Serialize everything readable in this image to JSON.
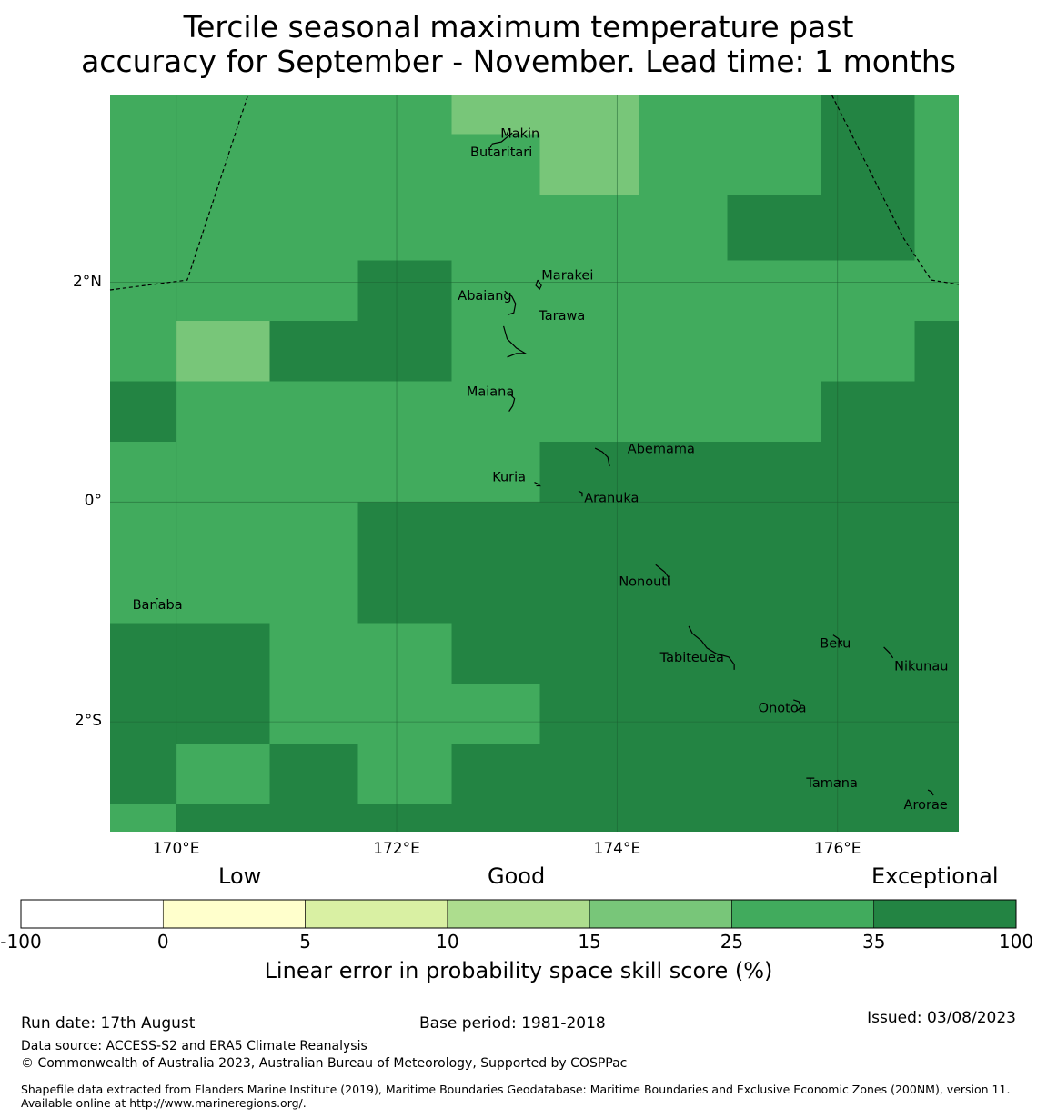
{
  "title_line1": "Tercile seasonal maximum temperature past",
  "title_line2": "accuracy for September - November. Lead time: 1 months",
  "map": {
    "lon_range": [
      169.4,
      177.1
    ],
    "lat_range": [
      -3.0,
      3.7
    ],
    "grid_lons": [
      170,
      172,
      174,
      176
    ],
    "grid_lats": [
      2,
      0,
      -2
    ],
    "x_tick_labels": [
      "170°E",
      "172°E",
      "174°E",
      "176°E"
    ],
    "y_tick_labels": [
      "2°N",
      "0°",
      "2°S"
    ],
    "cells": [
      {
        "x0": 169.4,
        "x1": 170.0,
        "y0": 3.7,
        "y1": 0.55,
        "cat": 35
      },
      {
        "x0": 170.0,
        "x1": 172.5,
        "y0": 3.7,
        "y1": 2.2,
        "cat": 35
      },
      {
        "x0": 172.5,
        "x1": 173.3,
        "y0": 3.7,
        "y1": 3.35,
        "cat": 25
      },
      {
        "x0": 172.5,
        "x1": 173.3,
        "y0": 3.35,
        "y1": 2.2,
        "cat": 35
      },
      {
        "x0": 173.3,
        "x1": 174.2,
        "y0": 3.7,
        "y1": 2.8,
        "cat": 25
      },
      {
        "x0": 173.3,
        "x1": 174.2,
        "y0": 2.8,
        "y1": 0.55,
        "cat": 35
      },
      {
        "x0": 174.2,
        "x1": 175.0,
        "y0": 3.7,
        "y1": 0.55,
        "cat": 35
      },
      {
        "x0": 175.0,
        "x1": 175.85,
        "y0": 3.7,
        "y1": 2.8,
        "cat": 35
      },
      {
        "x0": 175.0,
        "x1": 176.7,
        "y0": 2.8,
        "y1": 2.2,
        "cat": 100
      },
      {
        "x0": 175.85,
        "x1": 176.7,
        "y0": 3.7,
        "y1": 2.8,
        "cat": 100
      },
      {
        "x0": 176.7,
        "x1": 177.1,
        "y0": 3.7,
        "y1": 1.65,
        "cat": 35
      },
      {
        "x0": 175.0,
        "x1": 176.7,
        "y0": 2.2,
        "y1": 1.1,
        "cat": 35
      },
      {
        "x0": 176.7,
        "x1": 177.1,
        "y0": 1.65,
        "y1": -3.0,
        "cat": 100
      },
      {
        "x0": 170.0,
        "x1": 171.65,
        "y0": 2.2,
        "y1": 1.65,
        "cat": 35
      },
      {
        "x0": 171.65,
        "x1": 172.5,
        "y0": 2.2,
        "y1": 1.65,
        "cat": 100
      },
      {
        "x0": 170.0,
        "x1": 170.85,
        "y0": 1.65,
        "y1": 1.1,
        "cat": 25
      },
      {
        "x0": 170.85,
        "x1": 172.5,
        "y0": 1.65,
        "y1": 1.1,
        "cat": 100
      },
      {
        "x0": 172.5,
        "x1": 173.3,
        "y0": 2.2,
        "y1": 0.55,
        "cat": 35
      },
      {
        "x0": 170.0,
        "x1": 172.5,
        "y0": 1.1,
        "y1": 0.55,
        "cat": 35
      },
      {
        "x0": 169.4,
        "x1": 170.0,
        "y0": 1.1,
        "y1": 0.55,
        "cat": 100
      },
      {
        "x0": 175.85,
        "x1": 176.7,
        "y0": 1.1,
        "y1": 0.55,
        "cat": 100
      },
      {
        "x0": 169.4,
        "x1": 173.3,
        "y0": 0.55,
        "y1": 0.0,
        "cat": 35
      },
      {
        "x0": 173.3,
        "x1": 176.7,
        "y0": 0.55,
        "y1": 0.0,
        "cat": 100
      },
      {
        "x0": 169.4,
        "x1": 171.65,
        "y0": 0.0,
        "y1": -1.1,
        "cat": 35
      },
      {
        "x0": 171.65,
        "x1": 176.7,
        "y0": 0.0,
        "y1": -1.1,
        "cat": 100
      },
      {
        "x0": 169.4,
        "x1": 170.85,
        "y0": -1.1,
        "y1": -2.2,
        "cat": 100
      },
      {
        "x0": 170.85,
        "x1": 172.5,
        "y0": -1.1,
        "y1": -2.2,
        "cat": 35
      },
      {
        "x0": 172.5,
        "x1": 173.3,
        "y0": -1.1,
        "y1": -1.65,
        "cat": 100
      },
      {
        "x0": 172.5,
        "x1": 173.3,
        "y0": -1.65,
        "y1": -2.2,
        "cat": 35
      },
      {
        "x0": 173.3,
        "x1": 176.7,
        "y0": -1.1,
        "y1": -2.2,
        "cat": 100
      },
      {
        "x0": 169.4,
        "x1": 170.0,
        "y0": -2.2,
        "y1": -2.75,
        "cat": 100
      },
      {
        "x0": 170.0,
        "x1": 170.85,
        "y0": -2.2,
        "y1": -2.75,
        "cat": 35
      },
      {
        "x0": 170.85,
        "x1": 171.65,
        "y0": -2.2,
        "y1": -2.75,
        "cat": 100
      },
      {
        "x0": 171.65,
        "x1": 172.5,
        "y0": -2.2,
        "y1": -2.75,
        "cat": 35
      },
      {
        "x0": 172.5,
        "x1": 176.7,
        "y0": -2.2,
        "y1": -2.75,
        "cat": 100
      },
      {
        "x0": 169.4,
        "x1": 170.0,
        "y0": -2.75,
        "y1": -3.0,
        "cat": 35
      },
      {
        "x0": 170.0,
        "x1": 176.7,
        "y0": -2.75,
        "y1": -3.0,
        "cat": 100
      }
    ],
    "eez_boundary_west": [
      [
        169.4,
        1.93
      ],
      [
        170.1,
        2.02
      ],
      [
        170.65,
        3.7
      ]
    ],
    "eez_boundary_east": [
      [
        175.95,
        3.7
      ],
      [
        176.6,
        2.4
      ],
      [
        176.85,
        2.02
      ],
      [
        177.1,
        1.98
      ]
    ],
    "places": [
      {
        "name": "Makin",
        "lon": 173.12,
        "lat": 3.35
      },
      {
        "name": "Butaritari",
        "lon": 172.95,
        "lat": 3.18
      },
      {
        "name": "Marakei",
        "lon": 173.55,
        "lat": 2.06
      },
      {
        "name": "Abaiang",
        "lon": 172.8,
        "lat": 1.87
      },
      {
        "name": "Tarawa",
        "lon": 173.5,
        "lat": 1.69
      },
      {
        "name": "Maiana",
        "lon": 172.85,
        "lat": 1.0
      },
      {
        "name": "Abemama",
        "lon": 174.4,
        "lat": 0.48
      },
      {
        "name": "Kuria",
        "lon": 173.02,
        "lat": 0.22
      },
      {
        "name": "Aranuka",
        "lon": 173.95,
        "lat": 0.03
      },
      {
        "name": "Nonouti",
        "lon": 174.25,
        "lat": -0.73
      },
      {
        "name": "Banaba",
        "lon": 169.83,
        "lat": -0.94
      },
      {
        "name": "Beru",
        "lon": 175.98,
        "lat": -1.29
      },
      {
        "name": "Tabiteuea",
        "lon": 174.68,
        "lat": -1.42
      },
      {
        "name": "Nikunau",
        "lon": 176.76,
        "lat": -1.5
      },
      {
        "name": "Onotoa",
        "lon": 175.5,
        "lat": -1.88
      },
      {
        "name": "Tamana",
        "lon": 175.95,
        "lat": -2.56
      },
      {
        "name": "Arorae",
        "lon": 176.8,
        "lat": -2.76
      }
    ]
  },
  "colorbar": {
    "categories": [
      "Low",
      "Good",
      "Exceptional"
    ],
    "bounds": [
      -100,
      0,
      5,
      10,
      15,
      25,
      35,
      100
    ],
    "tick_labels": [
      "-100",
      "0",
      "5",
      "10",
      "15",
      "25",
      "35",
      "100"
    ],
    "colors": [
      "#ffffff",
      "#ffffcc",
      "#d9f0a3",
      "#addd8e",
      "#78c679",
      "#41ab5d",
      "#238443"
    ],
    "label": "Linear error in probability space skill score (%)"
  },
  "footer": {
    "run_date": "Run date: 17th August",
    "base_period": "Base period: 1981-2018",
    "issued": "Issued: 03/08/2023",
    "data_source": "Data source: ACCESS-S2 and ERA5 Climate Reanalysis",
    "copyright": "© Commonwealth of Australia 2023, Australian Bureau of Meteorology, Supported by COSPPac",
    "shapefile_note": "Shapefile data extracted from Flanders Marine Institute (2019), Maritime Boundaries Geodatabase: Maritime Boundaries and Exclusive Economic Zones (200NM), version 11. Available online at http://www.marineregions.org/."
  }
}
